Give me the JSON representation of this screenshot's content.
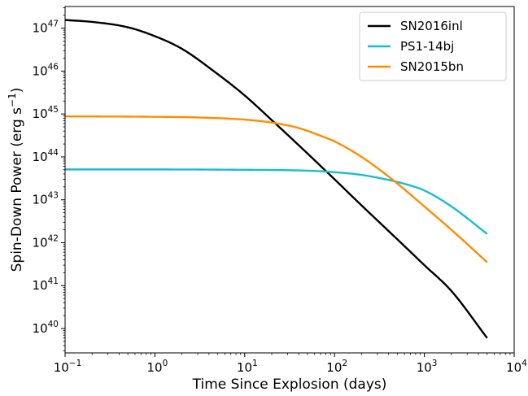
{
  "chart_data": {
    "type": "line",
    "title": "",
    "xlabel": "Time Since Explosion (days)",
    "ylabel_parts": {
      "main": "Spin-Down Power (erg s",
      "sup": "−1",
      "end": ")"
    },
    "x_scale": "log",
    "y_scale": "log",
    "xlim": [
      0.1,
      10000
    ],
    "ylim": [
      2.7e+39,
      3.2e+47
    ],
    "x_ticks": [
      {
        "value": 0.1,
        "base": "10",
        "exp": "−1"
      },
      {
        "value": 1,
        "base": "10",
        "exp": "0"
      },
      {
        "value": 10,
        "base": "10",
        "exp": "1"
      },
      {
        "value": 100,
        "base": "10",
        "exp": "2"
      },
      {
        "value": 1000,
        "base": "10",
        "exp": "3"
      },
      {
        "value": 10000,
        "base": "10",
        "exp": "4"
      }
    ],
    "y_ticks": [
      {
        "value": 1e+40,
        "base": "10",
        "exp": "40"
      },
      {
        "value": 1e+41,
        "base": "10",
        "exp": "41"
      },
      {
        "value": 1e+42,
        "base": "10",
        "exp": "42"
      },
      {
        "value": 1e+43,
        "base": "10",
        "exp": "43"
      },
      {
        "value": 1e+44,
        "base": "10",
        "exp": "44"
      },
      {
        "value": 1e+45,
        "base": "10",
        "exp": "45"
      },
      {
        "value": 1e+46,
        "base": "10",
        "exp": "46"
      },
      {
        "value": 1e+47,
        "base": "10",
        "exp": "47"
      }
    ],
    "grid": false,
    "legend_position": "top-right",
    "series": [
      {
        "name": "SN2016inl",
        "color": "#000000",
        "x": [
          0.1,
          0.2,
          0.5,
          1,
          2,
          5,
          10,
          20,
          50,
          100,
          200,
          500,
          1000,
          2000,
          5000
        ],
        "y": [
          1.55e+47,
          1.4e+47,
          1.05e+47,
          6.5e+46,
          3.3e+46,
          8.5e+45,
          2.7e+45,
          7.2e+44,
          1.2e+44,
          3e+43,
          7.4e+42,
          1.2e+42,
          3e+41,
          7.5e+40,
          6e+39
        ]
      },
      {
        "name": "PS1-14bj",
        "color": "#17becf",
        "x": [
          0.1,
          1,
          10,
          30,
          60,
          100,
          200,
          400,
          700,
          1000,
          2000,
          5000
        ],
        "y": [
          5.1e+43,
          5.1e+43,
          5e+43,
          4.9e+43,
          4.7e+43,
          4.4e+43,
          3.8e+43,
          2.9e+43,
          2.15e+43,
          1.65e+43,
          7e+42,
          1.6e+42
        ]
      },
      {
        "name": "SN2015bn",
        "color": "#ff8c00",
        "x": [
          0.1,
          1,
          3,
          10,
          20,
          40,
          70,
          100,
          200,
          300,
          500,
          1000,
          2000,
          5000
        ],
        "y": [
          8.8e+44,
          8.6e+44,
          8.3e+44,
          7.4e+44,
          6.3e+44,
          4.7e+44,
          3.1e+44,
          2.3e+44,
          1e+44,
          5.5e+43,
          2.4e+43,
          7e+42,
          2e+42,
          3.5e+41
        ]
      }
    ]
  }
}
